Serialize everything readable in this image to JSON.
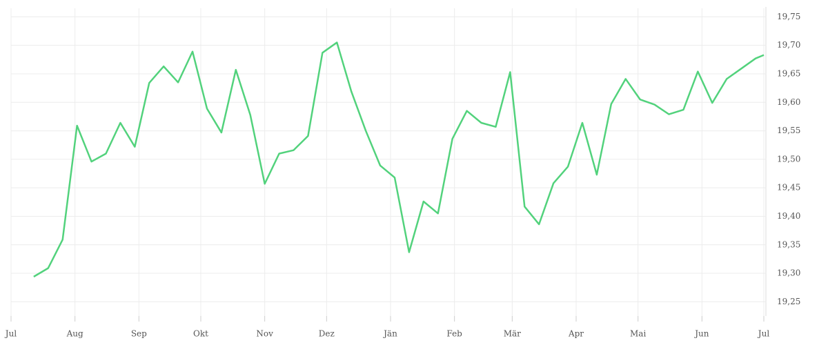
{
  "chart_data": {
    "type": "line",
    "x": [
      11,
      18,
      25,
      32,
      39,
      46,
      53,
      60,
      67,
      74,
      81,
      88,
      95,
      102,
      109,
      116,
      123,
      130,
      137,
      144,
      151,
      158,
      165,
      172,
      179,
      186,
      193,
      200,
      207,
      214,
      221,
      228,
      235,
      242,
      249,
      256,
      263,
      270,
      277,
      284,
      291,
      298,
      305,
      312,
      319,
      326,
      333,
      340,
      347,
      354,
      361,
      365
    ],
    "series": [
      {
        "color": "#52d27c",
        "values": [
          19.294,
          19.309,
          19.359,
          19.559,
          19.496,
          19.51,
          19.564,
          19.522,
          19.634,
          19.663,
          19.635,
          19.689,
          19.589,
          19.547,
          19.657,
          19.578,
          19.457,
          19.51,
          19.516,
          19.541,
          19.687,
          19.705,
          19.619,
          19.55,
          19.489,
          19.468,
          19.337,
          19.426,
          19.405,
          19.536,
          19.585,
          19.564,
          19.557,
          19.653,
          19.417,
          19.386,
          19.458,
          19.487,
          19.564,
          19.473,
          19.597,
          19.641,
          19.605,
          19.596,
          19.579,
          19.587,
          19.654,
          19.599,
          19.641,
          19.659,
          19.677,
          19.683
        ]
      }
    ],
    "xlim": [
      0,
      365
    ],
    "xticks": [
      {
        "value": 0,
        "label": "Jul"
      },
      {
        "value": 31,
        "label": "Aug"
      },
      {
        "value": 62,
        "label": "Sep"
      },
      {
        "value": 92,
        "label": "Okt"
      },
      {
        "value": 123,
        "label": "Nov"
      },
      {
        "value": 153,
        "label": "Dez"
      },
      {
        "value": 184,
        "label": "Jän"
      },
      {
        "value": 215,
        "label": "Feb"
      },
      {
        "value": 243,
        "label": "Mär"
      },
      {
        "value": 274,
        "label": "Apr"
      },
      {
        "value": 304,
        "label": "Mai"
      },
      {
        "value": 335,
        "label": "Jun"
      },
      {
        "value": 365,
        "label": "Jul"
      }
    ],
    "ylim": [
      19.225,
      19.765
    ],
    "yticks": [
      {
        "value": 19.25,
        "label": "19,25"
      },
      {
        "value": 19.3,
        "label": "19,30"
      },
      {
        "value": 19.35,
        "label": "19,35"
      },
      {
        "value": 19.4,
        "label": "19,40"
      },
      {
        "value": 19.45,
        "label": "19,45"
      },
      {
        "value": 19.5,
        "label": "19,50"
      },
      {
        "value": 19.55,
        "label": "19,55"
      },
      {
        "value": 19.6,
        "label": "19,60"
      },
      {
        "value": 19.65,
        "label": "19,65"
      },
      {
        "value": 19.7,
        "label": "19,70"
      },
      {
        "value": 19.75,
        "label": "19,75"
      }
    ],
    "grid": true
  }
}
